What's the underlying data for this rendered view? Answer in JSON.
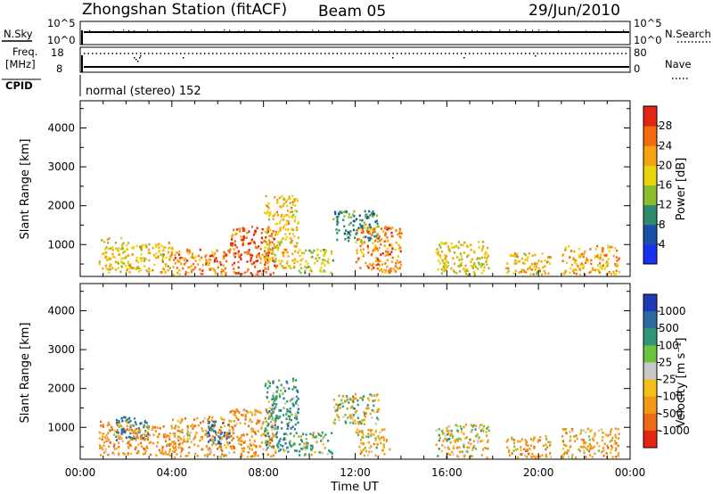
{
  "header": {
    "station": "Zhongshan Station (fitACF)",
    "beam": "Beam 05",
    "date": "29/Jun/2010"
  },
  "mode_label": "normal (stereo) 152",
  "time_axis": {
    "label": "Time UT",
    "ticks": [
      "00:00",
      "04:00",
      "08:00",
      "12:00",
      "16:00",
      "20:00",
      "00:00"
    ]
  },
  "range_axis": {
    "label": "Slant Range [km]",
    "ticks": [
      "1000",
      "2000",
      "3000",
      "4000"
    ],
    "ylim": [
      180,
      4700
    ]
  },
  "top_panels": {
    "nsky_label": "N.Sky",
    "nsearch_label": "N.Search",
    "nsky_tick_hi": "10^5",
    "nsky_tick_lo": "10^0",
    "nsearch_tick_hi": "10^5",
    "nsearch_tick_lo": "10^0",
    "freq_label_1": "Freq.",
    "freq_label_2": "[MHz]",
    "freq_tick_hi": "18",
    "freq_tick_lo": "8",
    "nave_tick_hi": "80",
    "nave_tick_lo": "0",
    "nave_label": "Nave",
    "cpid_label": "CPID"
  },
  "colorbars": {
    "power": {
      "label": "Power [dB]",
      "ticks": [
        "4",
        "8",
        "12",
        "16",
        "20",
        "24",
        "28"
      ],
      "colors": [
        "#1830f0",
        "#1a4fa8",
        "#2e8a6a",
        "#8bbd2c",
        "#e9d40c",
        "#f5a40f",
        "#f36a10",
        "#e42515"
      ]
    },
    "velocity": {
      "label": "Velocity [m s⁻¹]",
      "ticks": [
        "1000",
        "500",
        "100",
        "25",
        "-25",
        "-100",
        "-500",
        "-1000"
      ],
      "colors": [
        "#1f3ab5",
        "#2c6aa0",
        "#30967a",
        "#6ac43c",
        "#c8c8c8",
        "#f5c016",
        "#f29a18",
        "#ef6a14",
        "#e42515"
      ]
    }
  },
  "chart_data": [
    {
      "type": "heatmap",
      "title": "Power [dB]",
      "xlabel": "Time UT",
      "ylabel": "Slant Range [km]",
      "xlim": [
        0,
        24
      ],
      "ylim": [
        180,
        4700
      ],
      "value_range": [
        0,
        30
      ],
      "echo_regions": [
        {
          "t": [
            0.8,
            2.0
          ],
          "range": [
            300,
            1200
          ],
          "value": 18
        },
        {
          "t": [
            2.0,
            4.0
          ],
          "range": [
            300,
            1100
          ],
          "value": 20
        },
        {
          "t": [
            4.0,
            6.5
          ],
          "range": [
            250,
            900
          ],
          "value": 24
        },
        {
          "t": [
            6.5,
            8.5
          ],
          "range": [
            250,
            1500
          ],
          "value": 27
        },
        {
          "t": [
            8.0,
            9.5
          ],
          "range": [
            400,
            2300
          ],
          "value": 20
        },
        {
          "t": [
            9.5,
            11.0
          ],
          "range": [
            300,
            900
          ],
          "value": 16
        },
        {
          "t": [
            11.0,
            13.0
          ],
          "range": [
            1100,
            1900
          ],
          "value": 10
        },
        {
          "t": [
            12.0,
            14.0
          ],
          "range": [
            300,
            1500
          ],
          "value": 24
        },
        {
          "t": [
            15.5,
            17.8
          ],
          "range": [
            250,
            1100
          ],
          "value": 18
        },
        {
          "t": [
            18.5,
            20.5
          ],
          "range": [
            250,
            800
          ],
          "value": 20
        },
        {
          "t": [
            21.0,
            23.5
          ],
          "range": [
            250,
            1000
          ],
          "value": 22
        }
      ]
    },
    {
      "type": "heatmap",
      "title": "Velocity [m s-1]",
      "xlabel": "Time UT",
      "ylabel": "Slant Range [km]",
      "xlim": [
        0,
        24
      ],
      "ylim": [
        180,
        4700
      ],
      "value_range": [
        -1000,
        1000
      ],
      "echo_regions": [
        {
          "t": [
            0.8,
            2.0
          ],
          "range": [
            300,
            1200
          ],
          "value": -300
        },
        {
          "t": [
            1.5,
            3.0
          ],
          "range": [
            700,
            1300
          ],
          "value": 600
        },
        {
          "t": [
            2.0,
            4.0
          ],
          "range": [
            300,
            1100
          ],
          "value": -400
        },
        {
          "t": [
            4.0,
            6.5
          ],
          "range": [
            250,
            1300
          ],
          "value": -300
        },
        {
          "t": [
            5.5,
            6.5
          ],
          "range": [
            600,
            1200
          ],
          "value": 700
        },
        {
          "t": [
            6.5,
            8.5
          ],
          "range": [
            250,
            1500
          ],
          "value": -350
        },
        {
          "t": [
            8.0,
            9.5
          ],
          "range": [
            400,
            2300
          ],
          "value": 300
        },
        {
          "t": [
            9.5,
            11.0
          ],
          "range": [
            300,
            900
          ],
          "value": 150
        },
        {
          "t": [
            11.0,
            13.0
          ],
          "range": [
            1100,
            1900
          ],
          "value": 0
        },
        {
          "t": [
            12.0,
            13.5
          ],
          "range": [
            300,
            1000
          ],
          "value": -200
        },
        {
          "t": [
            15.5,
            17.8
          ],
          "range": [
            250,
            1100
          ],
          "value": -150
        },
        {
          "t": [
            18.5,
            20.5
          ],
          "range": [
            250,
            800
          ],
          "value": -300
        },
        {
          "t": [
            21.0,
            23.5
          ],
          "range": [
            250,
            1000
          ],
          "value": -250
        }
      ]
    }
  ]
}
